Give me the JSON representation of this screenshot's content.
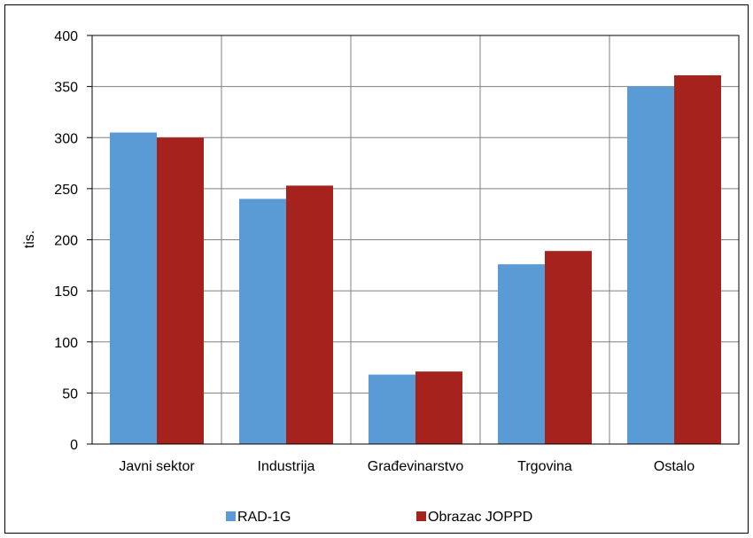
{
  "chart_data": {
    "type": "bar",
    "title": "",
    "xlabel": "",
    "ylabel": "tis.",
    "ylim": [
      0,
      400
    ],
    "yticks": [
      0,
      50,
      100,
      150,
      200,
      250,
      300,
      350,
      400
    ],
    "grid": true,
    "legend_position": "bottom",
    "categories": [
      "Javni sektor",
      "Industrija",
      "Građevinarstvo",
      "Trgovina",
      "Ostalo"
    ],
    "series": [
      {
        "name": "RAD-1G",
        "color": "#5B9BD5",
        "values": [
          305,
          240,
          68,
          176,
          350
        ]
      },
      {
        "name": "Obrazac JOPPD",
        "color": "#A5231C",
        "values": [
          300,
          253,
          71,
          189,
          361
        ]
      }
    ]
  }
}
